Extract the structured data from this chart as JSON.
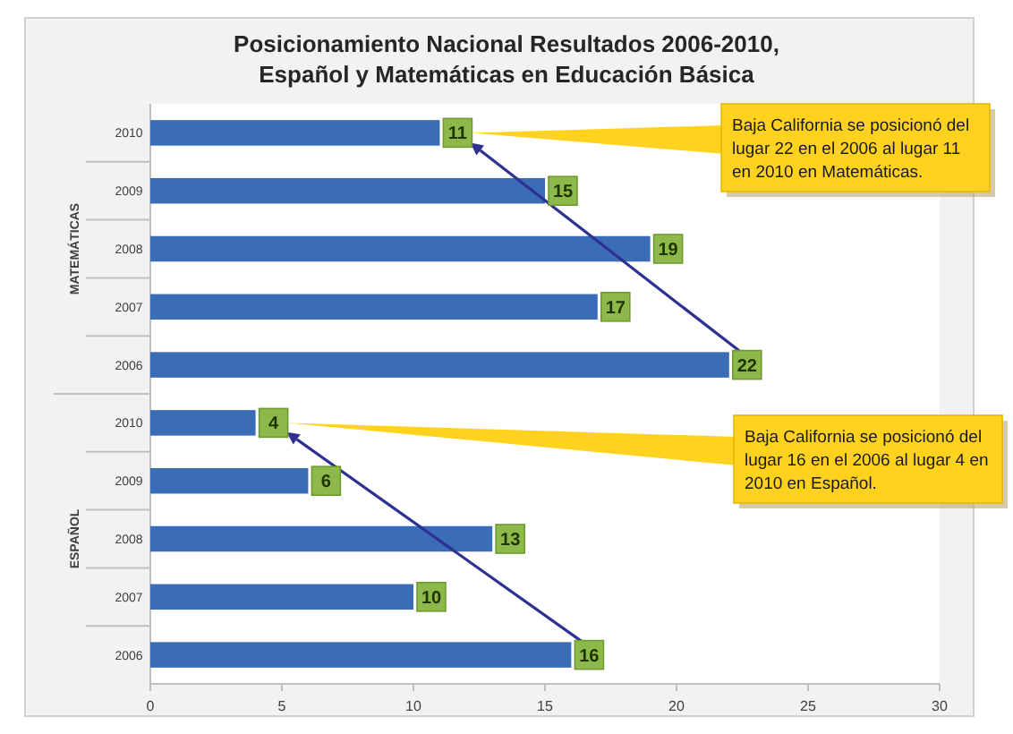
{
  "chart_data": {
    "type": "bar",
    "orientation": "horizontal",
    "title": "Posicionamiento Nacional Resultados 2006-2010, Español y Matemáticas en Educación Básica",
    "categories": [
      "2010",
      "2009",
      "2008",
      "2007",
      "2006",
      "2010",
      "2009",
      "2008",
      "2007",
      "2006"
    ],
    "values": [
      11,
      15,
      19,
      17,
      22,
      4,
      6,
      13,
      10,
      16
    ],
    "color": "#3a6db5",
    "xlim": [
      0,
      30
    ],
    "xticks": [
      0,
      5,
      10,
      15,
      20,
      25,
      30
    ],
    "data_labels": true,
    "annotations": [
      "MATEMÁTICAS",
      "ESPAÑOL",
      "Baja California se posicionó del lugar 22 en el 2006 al lugar 11 en 2010 en Matemáticas.",
      "Baja California se posicionó del lugar 16 en el 2006 al lugar 4 en 2010 en Español."
    ]
  }
}
